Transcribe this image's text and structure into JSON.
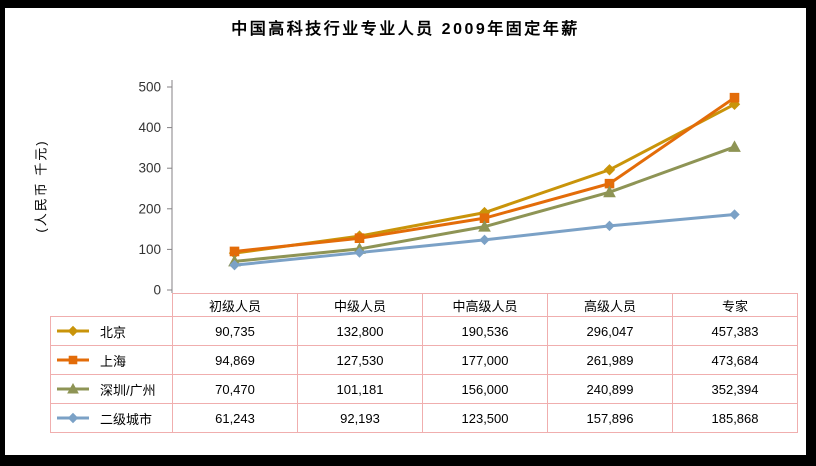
{
  "title": "中国高科技行业专业人员 2009年固定年薪",
  "colors": {
    "table_border": "#F0AEAE",
    "axis": "#848284",
    "background": "#FFFFFF",
    "frame": "#000000"
  },
  "chart_data": {
    "type": "line",
    "title": "中国高科技行业专业人员 2009年固定年薪",
    "ylabel": "(人民币 千元)",
    "xlabel": "",
    "ylim": [
      0,
      500
    ],
    "y_ticks": [
      0,
      100,
      200,
      300,
      400,
      500
    ],
    "unit_divisor": 1000,
    "grid": false,
    "legend_position": "data-table-left-column",
    "categories": [
      "初级人员",
      "中级人员",
      "中高级人员",
      "高级人员",
      "专家"
    ],
    "series": [
      {
        "id": "beijing",
        "name": "北京",
        "marker": "diamond",
        "color": "#C9940A",
        "values": [
          90735,
          132800,
          190536,
          296047,
          457383
        ],
        "labels": [
          "90,735",
          "132,800",
          "190,536",
          "296,047",
          "457,383"
        ]
      },
      {
        "id": "shanghai",
        "name": "上海",
        "marker": "square",
        "color": "#E36C09",
        "values": [
          94869,
          127530,
          177000,
          261989,
          473684
        ],
        "labels": [
          "94,869",
          "127,530",
          "177,000",
          "261,989",
          "473,684"
        ]
      },
      {
        "id": "shenzhen-guangzhou",
        "name": "深圳/广州",
        "marker": "triangle",
        "color": "#8E9455",
        "values": [
          70470,
          101181,
          156000,
          240899,
          352394
        ],
        "labels": [
          "70,470",
          "101,181",
          "156,000",
          "240,899",
          "352,394"
        ]
      },
      {
        "id": "tier2-cities",
        "name": "二级城市",
        "marker": "diamond",
        "color": "#7BA1C6",
        "values": [
          61243,
          92193,
          123500,
          157896,
          185868
        ],
        "labels": [
          "61,243",
          "92,193",
          "123,500",
          "157,896",
          "185,868"
        ]
      }
    ]
  }
}
